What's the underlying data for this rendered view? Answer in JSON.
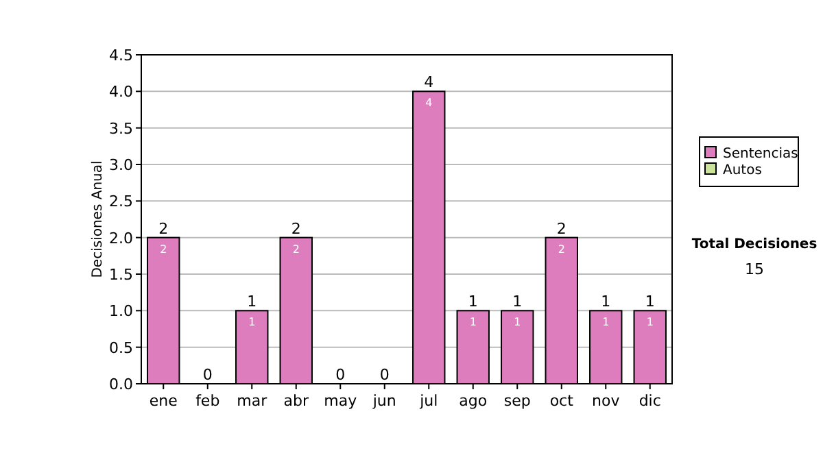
{
  "chart_data": {
    "type": "bar",
    "ylabel": "Decisiones Anual",
    "categories": [
      "ene",
      "feb",
      "mar",
      "abr",
      "may",
      "jun",
      "jul",
      "ago",
      "sep",
      "oct",
      "nov",
      "dic"
    ],
    "series": [
      {
        "name": "Sentencias",
        "color": "#dd7dbd",
        "values": [
          2,
          0,
          1,
          2,
          0,
          0,
          4,
          1,
          1,
          2,
          1,
          1
        ],
        "value_labels": [
          "2",
          null,
          "1",
          "2",
          null,
          null,
          "4",
          "1",
          "1",
          "2",
          "1",
          "1"
        ]
      },
      {
        "name": "Autos",
        "color": "#cce49a",
        "values": [
          0,
          0,
          0,
          0,
          0,
          0,
          0,
          0,
          0,
          0,
          0,
          0
        ]
      }
    ],
    "stacked": true,
    "totals": [
      "2",
      "0",
      "1",
      "2",
      "0",
      "0",
      "4",
      "1",
      "1",
      "2",
      "1",
      "1"
    ],
    "ylim": [
      0,
      4.5
    ],
    "yticks": [
      {
        "value": 0,
        "label": "0.0"
      },
      {
        "value": 0.5,
        "label": "0.5"
      },
      {
        "value": 1,
        "label": "1.0"
      },
      {
        "value": 1.5,
        "label": "1.5"
      },
      {
        "value": 2,
        "label": "2.0"
      },
      {
        "value": 2.5,
        "label": "2.5"
      },
      {
        "value": 3,
        "label": "3.0"
      },
      {
        "value": 3.5,
        "label": "3.5"
      },
      {
        "value": 4,
        "label": "4.0"
      },
      {
        "value": 4.5,
        "label": "4.5"
      }
    ],
    "grid": "y",
    "legend": "right",
    "annotations": [
      "Total Decisiones",
      "15"
    ]
  }
}
